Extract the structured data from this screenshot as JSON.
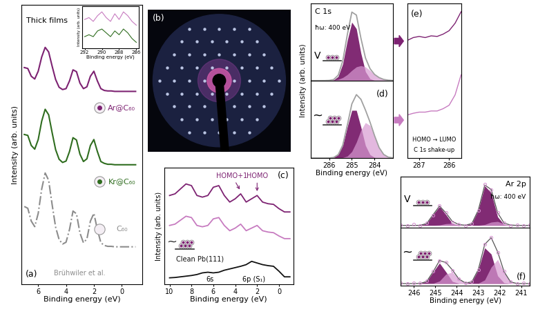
{
  "chart_data": [
    {
      "type": "line",
      "panel": "(a)",
      "title": "Thick films",
      "xlabel": "Binding energy (eV)",
      "ylabel": "Intensity (arb. units)",
      "x": [
        7.0,
        6.75,
        6.5,
        6.25,
        6.0,
        5.75,
        5.5,
        5.25,
        5.0,
        4.75,
        4.5,
        4.25,
        4.0,
        3.75,
        3.5,
        3.25,
        3.0,
        2.75,
        2.5,
        2.25,
        2.0,
        1.75,
        1.5,
        1.25,
        1.0,
        0.75,
        0.5,
        0.25,
        0.0,
        -0.25,
        -0.5,
        -0.75,
        -1.0
      ],
      "series": [
        {
          "name": "Ar@C₆₀",
          "color": "#7d2272",
          "line_style": "solid",
          "values": [
            4.03,
            4.01,
            3.84,
            3.78,
            3.95,
            4.26,
            4.47,
            4.37,
            4.06,
            3.77,
            3.6,
            3.55,
            3.57,
            3.74,
            3.98,
            3.94,
            3.69,
            3.57,
            3.61,
            3.84,
            3.95,
            3.74,
            3.57,
            3.53,
            3.52,
            3.52,
            3.51,
            3.51,
            3.51,
            3.51,
            3.51,
            3.51,
            3.51
          ]
        },
        {
          "name": "Kr@C₆₀",
          "color": "#2f6d1f",
          "line_style": "solid",
          "values": [
            2.57,
            2.55,
            2.33,
            2.25,
            2.46,
            2.86,
            3.12,
            3.0,
            2.61,
            2.24,
            2.03,
            1.96,
            1.99,
            2.2,
            2.5,
            2.45,
            2.14,
            1.98,
            2.04,
            2.33,
            2.46,
            2.2,
            1.98,
            1.94,
            1.92,
            1.92,
            1.91,
            1.91,
            1.91,
            1.91,
            1.91,
            1.91,
            1.91
          ]
        },
        {
          "name": "C₆₀",
          "color": "#8c8c8c",
          "line_style": "dashdot",
          "values": [
            1.0,
            0.96,
            0.68,
            0.56,
            0.85,
            1.38,
            1.73,
            1.57,
            1.04,
            0.55,
            0.28,
            0.18,
            0.22,
            0.5,
            0.9,
            0.84,
            0.42,
            0.21,
            0.29,
            0.68,
            0.85,
            0.5,
            0.21,
            0.15,
            0.13,
            0.13,
            0.12,
            0.12,
            0.12,
            0.12,
            0.12,
            0.12,
            0.12
          ]
        }
      ],
      "annotations": [
        "Brühwiler et al."
      ],
      "xlim": [
        7.2,
        -1.5
      ],
      "xticks": [
        6,
        4,
        2,
        0
      ],
      "ylim": [
        -0.7,
        5.4
      ],
      "tick_labels": "x"
    },
    {
      "type": "line",
      "xlabel": "Binding energy (eV)",
      "ylabel": "Intensity (arb. units)",
      "x": [
        292,
        291.5,
        291,
        290.5,
        290,
        289.5,
        289,
        288.5,
        288,
        287.5,
        287,
        286.5,
        286
      ],
      "series": [
        {
          "color": "#c77bc0",
          "line_style": "solid",
          "values": [
            0.75,
            0.8,
            0.7,
            0.85,
            0.95,
            0.8,
            0.7,
            0.9,
            0.75,
            0.95,
            0.85,
            0.7,
            0.6
          ]
        },
        {
          "color": "#2f6d1f",
          "line_style": "solid",
          "values": [
            0.3,
            0.35,
            0.3,
            0.45,
            0.5,
            0.4,
            0.3,
            0.45,
            0.35,
            0.5,
            0.4,
            0.25,
            0.15
          ]
        }
      ],
      "xlim": [
        292.3,
        285.7
      ],
      "xticks": [
        292,
        290,
        288,
        286
      ],
      "ylim": [
        0,
        1.1
      ],
      "tick_labels": "x"
    },
    {
      "type": "image",
      "panel": "(b)",
      "tick_labels": false
    },
    {
      "type": "line",
      "panel": "(c)",
      "xlabel": "Binding energy (eV)",
      "ylabel": "Intensity (arb. units)",
      "x": [
        10,
        9.5,
        9,
        8.5,
        8,
        7.5,
        7,
        6.5,
        6,
        5.5,
        5,
        4.5,
        4,
        3.5,
        3,
        2.5,
        2,
        1.5,
        1,
        0.5,
        0,
        -0.5,
        -1
      ],
      "series": [
        {
          "color": "#7d2272",
          "line_style": "solid",
          "values": [
            2.55,
            2.6,
            2.75,
            2.9,
            2.85,
            2.55,
            2.5,
            2.55,
            2.8,
            2.85,
            2.55,
            2.35,
            2.45,
            2.6,
            2.35,
            2.45,
            2.55,
            2.35,
            2.3,
            2.28,
            2.15,
            2.05,
            2.05
          ]
        },
        {
          "color": "#c77bc0",
          "line_style": "solid",
          "values": [
            1.64,
            1.68,
            1.8,
            1.92,
            1.88,
            1.64,
            1.6,
            1.64,
            1.84,
            1.88,
            1.64,
            1.48,
            1.56,
            1.68,
            1.48,
            1.56,
            1.64,
            1.48,
            1.44,
            1.42,
            1.32,
            1.24,
            1.24
          ]
        },
        {
          "name": "Clean Pb(111)",
          "color": "#111111",
          "line_style": "solid",
          "values": [
            0.05,
            0.06,
            0.08,
            0.1,
            0.12,
            0.15,
            0.2,
            0.22,
            0.2,
            0.22,
            0.28,
            0.32,
            0.36,
            0.4,
            0.45,
            0.55,
            0.5,
            0.45,
            0.42,
            0.4,
            0.25,
            0.08,
            0.08
          ]
        }
      ],
      "annotations": [
        "HOMO+1",
        "HOMO",
        "6s",
        "6p (S₁)"
      ],
      "symbol": "~",
      "xlim": [
        10.5,
        -1.3
      ],
      "xticks": [
        10,
        8,
        6,
        4,
        2,
        0
      ],
      "ylim": [
        -0.15,
        3.4
      ],
      "tick_labels": "x"
    },
    {
      "type": "line",
      "annotations": [
        "C 1s",
        "ħω: 400 eV"
      ],
      "symbol": "V",
      "x": [
        286.8,
        286.6,
        286.4,
        286.2,
        286.0,
        285.8,
        285.6,
        285.4,
        285.2,
        285.0,
        284.8,
        284.6,
        284.4,
        284.2,
        284.0,
        283.8,
        283.6,
        283.4,
        283.2
      ],
      "series": [
        {
          "type": "area",
          "color": "#7a1f6c",
          "values": [
            0,
            0,
            0,
            0,
            0.001,
            0.01,
            0.07,
            0.28,
            0.67,
            0.98,
            0.87,
            0.46,
            0.15,
            0.03,
            0.003,
            0,
            0,
            0,
            0
          ]
        },
        {
          "type": "area",
          "color": "#d89ad2",
          "values": [
            0,
            0,
            0,
            0.0005,
            0.002,
            0.007,
            0.021,
            0.05,
            0.1,
            0.17,
            0.23,
            0.25,
            0.23,
            0.17,
            0.1,
            0.05,
            0.02,
            0.007,
            0.002
          ]
        },
        {
          "type": "line",
          "color": "#a0a0a0",
          "line_style": "solid",
          "values": [
            0,
            0,
            0,
            0.0005,
            0.003,
            0.017,
            0.091,
            0.33,
            0.77,
            1.15,
            1.1,
            0.71,
            0.38,
            0.2,
            0.103,
            0.05,
            0.02,
            0.007,
            0.002
          ]
        }
      ],
      "xlim": [
        286.8,
        283.2
      ],
      "xticks": [
        286,
        285,
        284
      ],
      "ylim": [
        0,
        1.3
      ],
      "tick_labels": false
    },
    {
      "type": "line",
      "panel": "(d)",
      "symbol": "~",
      "xlabel": "Binding energy (eV)",
      "ylabel": "Intensity (arb. units)",
      "x": [
        286.8,
        286.6,
        286.4,
        286.2,
        286.0,
        285.8,
        285.6,
        285.4,
        285.2,
        285.0,
        284.8,
        284.6,
        284.4,
        284.2,
        284.0,
        283.8,
        283.6,
        283.4,
        283.2
      ],
      "series": [
        {
          "type": "area",
          "color": "#7a1f6c",
          "values": [
            0,
            0,
            0,
            0,
            0.001,
            0.009,
            0.056,
            0.21,
            0.52,
            0.8,
            0.8,
            0.52,
            0.21,
            0.056,
            0.009,
            0.001,
            0,
            0,
            0
          ]
        },
        {
          "type": "area",
          "color": "#d89ad2",
          "values": [
            0,
            0,
            0,
            0,
            0,
            0,
            0.001,
            0.007,
            0.031,
            0.108,
            0.264,
            0.465,
            0.594,
            0.546,
            0.366,
            0.174,
            0.06,
            0.015,
            0.003
          ]
        },
        {
          "type": "line",
          "color": "#a0a0a0",
          "line_style": "solid",
          "values": [
            0,
            0,
            0,
            0,
            0.001,
            0.009,
            0.057,
            0.217,
            0.551,
            0.908,
            1.064,
            0.985,
            0.804,
            0.602,
            0.375,
            0.175,
            0.06,
            0.015,
            0.003
          ]
        }
      ],
      "xlim": [
        286.8,
        283.2
      ],
      "xticks": [
        286,
        285,
        284
      ],
      "ylim": [
        0,
        1.3
      ],
      "tick_labels": "x"
    },
    {
      "type": "line",
      "panel": "(e)",
      "annotations": [
        "HOMO → LUMO",
        "C 1s shake-up"
      ],
      "x": [
        287.4,
        287.2,
        287.0,
        286.8,
        286.6,
        286.4,
        286.2,
        286.0,
        285.8,
        285.6
      ],
      "series": [
        {
          "color": "#7d2272",
          "line_style": "solid",
          "values": [
            1.45,
            1.5,
            1.52,
            1.5,
            1.53,
            1.52,
            1.56,
            1.62,
            1.75,
            1.95
          ]
        },
        {
          "color": "#c77bc0",
          "line_style": "solid",
          "values": [
            0.15,
            0.18,
            0.2,
            0.2,
            0.22,
            0.22,
            0.26,
            0.32,
            0.5,
            0.85
          ]
        }
      ],
      "xlim": [
        287.4,
        285.6
      ],
      "xticks": [
        287,
        286
      ],
      "ylim": [
        -0.6,
        2.1
      ],
      "tick_labels": "x"
    },
    {
      "type": "line",
      "annotations": [
        "Ar 2p",
        "ħω: 400 eV"
      ],
      "symbol": "V",
      "x": [
        246.6,
        246.3,
        246.0,
        245.7,
        245.4,
        245.1,
        244.8,
        244.5,
        244.2,
        243.9,
        243.6,
        243.3,
        243.0,
        242.7,
        242.4,
        242.1,
        241.8,
        241.5,
        241.2,
        240.9,
        240.6
      ],
      "series": [
        {
          "type": "area",
          "color": "#7a1f6c",
          "values": [
            0,
            0,
            0,
            0.003,
            0.045,
            0.254,
            0.45,
            0.254,
            0.045,
            0.003,
            0.002,
            0.044,
            0.36,
            0.938,
            0.775,
            0.204,
            0.017,
            0,
            0,
            0,
            0
          ]
        },
        {
          "type": "area",
          "color": "#d89ad2",
          "values": [
            0,
            0,
            0,
            0,
            0,
            0.002,
            0.01,
            0.04,
            0.047,
            0.018,
            0.003,
            0,
            0.002,
            0.02,
            0.078,
            0.094,
            0.036,
            0.01,
            0,
            0,
            0
          ]
        },
        {
          "type": "line",
          "color": "#555555",
          "line_style": "solid",
          "values": [
            0,
            0,
            0,
            0.003,
            0.045,
            0.256,
            0.46,
            0.294,
            0.092,
            0.021,
            0.005,
            0.044,
            0.362,
            0.958,
            0.853,
            0.298,
            0.053,
            0.01,
            0,
            0,
            0
          ]
        },
        {
          "type": "scatter",
          "color": "#d58fd0",
          "marker": "circle",
          "values": [
            0.01,
            0,
            0.02,
            0,
            0.06,
            0.24,
            0.47,
            0.3,
            0.08,
            0.03,
            0,
            0.05,
            0.35,
            0.97,
            0.84,
            0.31,
            0.06,
            0,
            0.01,
            0,
            0.01
          ]
        }
      ],
      "xlim": [
        246.6,
        240.6
      ],
      "xticks": [
        246,
        245,
        244,
        243,
        242,
        241
      ],
      "ylim": [
        -0.05,
        1.15
      ],
      "tick_labels": false
    },
    {
      "type": "line",
      "panel": "(f)",
      "symbol": "~",
      "xlabel": "Binding energy (eV)",
      "x": [
        246.6,
        246.3,
        246.0,
        245.7,
        245.4,
        245.1,
        244.8,
        244.5,
        244.2,
        243.9,
        243.6,
        243.3,
        243.0,
        242.7,
        242.4,
        242.1,
        241.8,
        241.5,
        241.2,
        240.9,
        240.6
      ],
      "series": [
        {
          "type": "area",
          "color": "#7a1f6c",
          "values": [
            0,
            0,
            0,
            0.003,
            0.042,
            0.237,
            0.42,
            0.237,
            0.042,
            0.003,
            0.002,
            0.034,
            0.281,
            0.732,
            0.605,
            0.159,
            0.013,
            0,
            0,
            0,
            0
          ]
        },
        {
          "type": "area",
          "color": "#d89ad2",
          "values": [
            0,
            0,
            0,
            0,
            0,
            0.004,
            0.051,
            0.194,
            0.235,
            0.09,
            0.011,
            0,
            0.005,
            0.073,
            0.336,
            0.492,
            0.229,
            0.034,
            0.001,
            0,
            0
          ]
        },
        {
          "type": "line",
          "color": "#555555",
          "line_style": "solid",
          "values": [
            0,
            0,
            0,
            0.003,
            0.042,
            0.241,
            0.471,
            0.431,
            0.277,
            0.093,
            0.013,
            0.034,
            0.286,
            0.805,
            0.941,
            0.651,
            0.242,
            0.034,
            0.001,
            0,
            0
          ]
        },
        {
          "type": "scatter",
          "color": "#d58fd0",
          "marker": "circle",
          "values": [
            0.01,
            0,
            0.02,
            0.01,
            0.05,
            0.25,
            0.46,
            0.44,
            0.27,
            0.1,
            0.02,
            0.04,
            0.28,
            0.8,
            0.95,
            0.64,
            0.25,
            0.04,
            0,
            0.01,
            0
          ]
        }
      ],
      "xlim": [
        246.6,
        240.6
      ],
      "xticks": [
        246,
        245,
        244,
        243,
        242,
        241
      ],
      "ylim": [
        -0.05,
        1.15
      ],
      "tick_labels": "x"
    }
  ]
}
